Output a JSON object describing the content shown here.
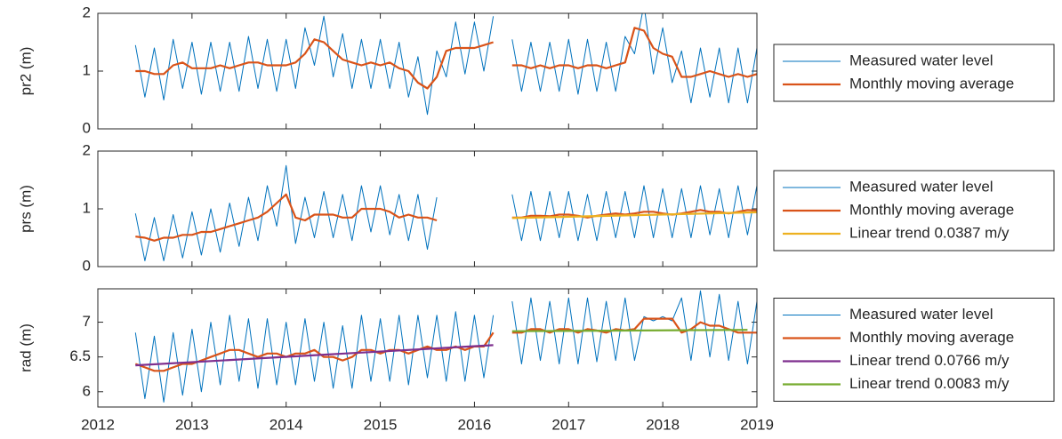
{
  "chart_data": [
    {
      "type": "line",
      "ylabel": "pr2 (m)",
      "xlim": [
        2012,
        2019
      ],
      "ylim": [
        0,
        2
      ],
      "yticks": [
        0,
        1,
        2
      ],
      "x": [
        2012.4,
        2012.5,
        2012.6,
        2012.7,
        2012.8,
        2012.9,
        2013.0,
        2013.1,
        2013.2,
        2013.3,
        2013.4,
        2013.5,
        2013.6,
        2013.7,
        2013.8,
        2013.9,
        2014.0,
        2014.1,
        2014.2,
        2014.3,
        2014.4,
        2014.5,
        2014.6,
        2014.7,
        2014.8,
        2014.9,
        2015.0,
        2015.1,
        2015.2,
        2015.3,
        2015.4,
        2015.5,
        2015.6,
        2015.7,
        2015.8,
        2015.9,
        2016.0,
        2016.1,
        2016.2,
        2016.3,
        2016.4,
        2016.5,
        2016.6,
        2016.7,
        2016.8,
        2016.9,
        2017.0,
        2017.1,
        2017.2,
        2017.3,
        2017.4,
        2017.5,
        2017.6,
        2017.7,
        2017.8,
        2017.9,
        2018.0,
        2018.1,
        2018.2,
        2018.3,
        2018.4,
        2018.5,
        2018.6,
        2018.7,
        2018.8,
        2018.9,
        2019.0
      ],
      "series": [
        {
          "name": "Measured water level",
          "color": "#0072BD",
          "values": [
            1.45,
            0.55,
            1.4,
            0.5,
            1.55,
            0.7,
            1.5,
            0.6,
            1.5,
            0.65,
            1.5,
            0.65,
            1.6,
            0.7,
            1.55,
            0.65,
            1.55,
            0.7,
            1.75,
            1.1,
            1.95,
            0.9,
            1.65,
            0.7,
            1.55,
            0.7,
            1.55,
            0.7,
            1.5,
            0.55,
            1.25,
            0.25,
            1.35,
            0.9,
            1.85,
            0.95,
            1.85,
            1.0,
            1.95,
            null,
            1.55,
            0.65,
            1.5,
            0.65,
            1.5,
            0.65,
            1.55,
            0.6,
            1.55,
            0.65,
            1.5,
            0.65,
            1.6,
            1.3,
            2.15,
            0.95,
            1.75,
            0.8,
            1.35,
            0.45,
            1.4,
            0.55,
            1.4,
            0.45,
            1.4,
            0.45,
            1.4
          ]
        },
        {
          "name": "Monthly moving average",
          "color": "#D95319",
          "values": [
            1.0,
            1.0,
            0.95,
            0.95,
            1.1,
            1.15,
            1.05,
            1.05,
            1.05,
            1.1,
            1.05,
            1.1,
            1.15,
            1.15,
            1.1,
            1.1,
            1.1,
            1.15,
            1.3,
            1.55,
            1.5,
            1.35,
            1.2,
            1.15,
            1.1,
            1.15,
            1.1,
            1.15,
            1.05,
            1.0,
            0.8,
            0.7,
            0.9,
            1.35,
            1.4,
            1.4,
            1.4,
            1.45,
            1.5,
            null,
            1.1,
            1.1,
            1.05,
            1.1,
            1.05,
            1.1,
            1.1,
            1.05,
            1.1,
            1.1,
            1.05,
            1.1,
            1.15,
            1.75,
            1.7,
            1.4,
            1.3,
            1.25,
            0.9,
            0.9,
            0.95,
            1.0,
            0.95,
            0.9,
            0.95,
            0.9,
            0.95
          ]
        }
      ]
    },
    {
      "type": "line",
      "ylabel": "prs (m)",
      "xlim": [
        2012,
        2019
      ],
      "ylim": [
        0,
        2
      ],
      "yticks": [
        0,
        1,
        2
      ],
      "x": [
        2012.4,
        2012.5,
        2012.6,
        2012.7,
        2012.8,
        2012.9,
        2013.0,
        2013.1,
        2013.2,
        2013.3,
        2013.4,
        2013.5,
        2013.6,
        2013.7,
        2013.8,
        2013.9,
        2014.0,
        2014.1,
        2014.2,
        2014.3,
        2014.4,
        2014.5,
        2014.6,
        2014.7,
        2014.8,
        2014.9,
        2015.0,
        2015.1,
        2015.2,
        2015.3,
        2015.4,
        2015.5,
        2015.6,
        2015.7,
        2015.8,
        2015.9,
        2016.0,
        2016.1,
        2016.2,
        2016.3,
        2016.4,
        2016.5,
        2016.6,
        2016.7,
        2016.8,
        2016.9,
        2017.0,
        2017.1,
        2017.2,
        2017.3,
        2017.4,
        2017.5,
        2017.6,
        2017.7,
        2017.8,
        2017.9,
        2018.0,
        2018.1,
        2018.2,
        2018.3,
        2018.4,
        2018.5,
        2018.6,
        2018.7,
        2018.8,
        2018.9,
        2019.0
      ],
      "series": [
        {
          "name": "Measured water level",
          "color": "#0072BD",
          "values": [
            0.92,
            0.1,
            0.85,
            0.1,
            0.9,
            0.15,
            0.95,
            0.2,
            1.0,
            0.25,
            1.1,
            0.35,
            1.2,
            0.45,
            1.4,
            0.7,
            1.75,
            0.4,
            1.2,
            0.5,
            1.3,
            0.5,
            1.25,
            0.45,
            1.4,
            0.6,
            1.4,
            0.55,
            1.25,
            0.45,
            1.25,
            0.3,
            1.2,
            null,
            null,
            null,
            null,
            null,
            null,
            null,
            1.25,
            0.45,
            1.3,
            0.45,
            1.3,
            0.5,
            1.3,
            0.45,
            1.25,
            0.45,
            1.3,
            0.5,
            1.3,
            0.5,
            1.4,
            0.5,
            1.35,
            0.5,
            1.35,
            0.5,
            1.4,
            0.55,
            1.35,
            0.5,
            1.4,
            0.55,
            1.4
          ]
        },
        {
          "name": "Monthly moving average",
          "color": "#D95319",
          "values": [
            0.52,
            0.5,
            0.45,
            0.5,
            0.5,
            0.55,
            0.55,
            0.6,
            0.6,
            0.65,
            0.7,
            0.75,
            0.8,
            0.85,
            0.95,
            1.1,
            1.25,
            0.85,
            0.8,
            0.9,
            0.9,
            0.9,
            0.85,
            0.85,
            1.0,
            1.0,
            1.0,
            0.95,
            0.85,
            0.9,
            0.85,
            0.85,
            0.8,
            null,
            null,
            null,
            null,
            null,
            null,
            null,
            0.85,
            0.85,
            0.88,
            0.88,
            0.87,
            0.9,
            0.9,
            0.88,
            0.85,
            0.88,
            0.9,
            0.92,
            0.9,
            0.92,
            0.95,
            0.95,
            0.92,
            0.9,
            0.92,
            0.95,
            0.98,
            0.95,
            0.95,
            0.92,
            0.95,
            0.98,
            0.97
          ]
        },
        {
          "name": "Linear trend 0.0387 m/y",
          "color": "#EDB120",
          "x": [
            2016.4,
            2019.0
          ],
          "values": [
            0.84,
            0.94
          ]
        }
      ]
    },
    {
      "type": "line",
      "ylabel": "rad (m)",
      "xlim": [
        2012,
        2019
      ],
      "ylim": [
        5.78,
        7.48
      ],
      "yticks": [
        6,
        6.5,
        7
      ],
      "xticks": [
        2012,
        2013,
        2014,
        2015,
        2016,
        2017,
        2018,
        2019
      ],
      "x": [
        2012.4,
        2012.5,
        2012.6,
        2012.7,
        2012.8,
        2012.9,
        2013.0,
        2013.1,
        2013.2,
        2013.3,
        2013.4,
        2013.5,
        2013.6,
        2013.7,
        2013.8,
        2013.9,
        2014.0,
        2014.1,
        2014.2,
        2014.3,
        2014.4,
        2014.5,
        2014.6,
        2014.7,
        2014.8,
        2014.9,
        2015.0,
        2015.1,
        2015.2,
        2015.3,
        2015.4,
        2015.5,
        2015.6,
        2015.7,
        2015.8,
        2015.9,
        2016.0,
        2016.1,
        2016.2,
        2016.3,
        2016.4,
        2016.5,
        2016.6,
        2016.7,
        2016.8,
        2016.9,
        2017.0,
        2017.1,
        2017.2,
        2017.3,
        2017.4,
        2017.5,
        2017.6,
        2017.7,
        2017.8,
        2017.9,
        2018.0,
        2018.1,
        2018.2,
        2018.3,
        2018.4,
        2018.5,
        2018.6,
        2018.7,
        2018.8,
        2018.9,
        2019.0
      ],
      "series": [
        {
          "name": "Measured water level",
          "color": "#0072BD",
          "values": [
            6.85,
            5.9,
            6.8,
            5.85,
            6.85,
            5.95,
            6.9,
            6.0,
            7.0,
            6.1,
            7.1,
            6.15,
            7.05,
            6.05,
            7.05,
            6.1,
            7.0,
            6.1,
            7.05,
            6.15,
            7.0,
            6.05,
            6.95,
            6.05,
            7.1,
            6.15,
            7.05,
            6.15,
            7.1,
            6.1,
            7.1,
            6.2,
            7.1,
            6.15,
            7.15,
            6.15,
            7.1,
            6.2,
            7.1,
            null,
            7.3,
            6.4,
            7.35,
            6.45,
            7.3,
            6.4,
            7.35,
            6.4,
            7.35,
            6.43,
            7.3,
            6.45,
            7.35,
            6.45,
            7.08,
            7.02,
            7.08,
            7.02,
            7.35,
            6.45,
            7.45,
            6.5,
            7.4,
            6.45,
            7.3,
            6.4,
            7.3
          ]
        },
        {
          "name": "Monthly moving average",
          "color": "#D95319",
          "values": [
            6.4,
            6.35,
            6.3,
            6.3,
            6.35,
            6.4,
            6.4,
            6.45,
            6.5,
            6.55,
            6.6,
            6.6,
            6.55,
            6.5,
            6.55,
            6.55,
            6.5,
            6.55,
            6.55,
            6.6,
            6.5,
            6.5,
            6.45,
            6.5,
            6.6,
            6.6,
            6.55,
            6.6,
            6.6,
            6.55,
            6.6,
            6.65,
            6.6,
            6.6,
            6.65,
            6.6,
            6.65,
            6.65,
            6.85,
            null,
            6.85,
            6.85,
            6.9,
            6.9,
            6.85,
            6.9,
            6.9,
            6.85,
            6.9,
            6.88,
            6.85,
            6.9,
            6.88,
            6.9,
            7.05,
            7.05,
            7.05,
            7.05,
            6.85,
            6.9,
            7.0,
            6.95,
            6.95,
            6.9,
            6.85,
            6.85,
            6.85
          ]
        },
        {
          "name": "Linear trend 0.0766 m/y",
          "color": "#7E2F8E",
          "x": [
            2012.4,
            2016.2
          ],
          "values": [
            6.38,
            6.67
          ]
        },
        {
          "name": "Linear trend 0.0083 m/y",
          "color": "#77AC30",
          "x": [
            2016.4,
            2018.9
          ],
          "values": [
            6.87,
            6.89
          ]
        }
      ]
    }
  ]
}
